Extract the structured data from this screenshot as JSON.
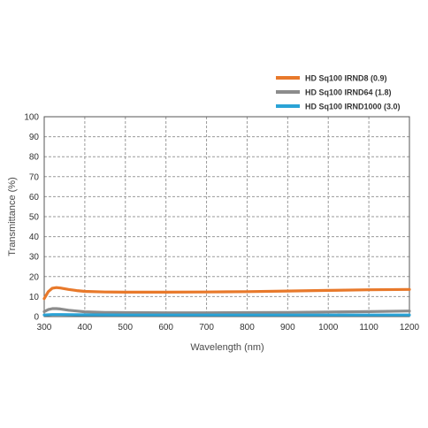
{
  "chart_data": {
    "type": "line",
    "xlabel": "Wavelength (nm)",
    "ylabel": "Transmittance (%)",
    "xlim": [
      300,
      1200
    ],
    "ylim": [
      0,
      100
    ],
    "x_ticks": [
      "300",
      "400",
      "500",
      "600",
      "700",
      "800",
      "900",
      "1000",
      "1100",
      "1200"
    ],
    "y_ticks": [
      "0",
      "10",
      "20",
      "30",
      "40",
      "50",
      "60",
      "70",
      "80",
      "90",
      "100"
    ],
    "grid": "dashed",
    "legend_position": "top-right",
    "series": [
      {
        "name": "HD Sq100 IRND8 (0.9)",
        "color": "#e8792b",
        "x": [
          300,
          310,
          320,
          330,
          340,
          360,
          380,
          400,
          450,
          500,
          600,
          700,
          800,
          900,
          1000,
          1100,
          1200
        ],
        "y": [
          9,
          12.5,
          14.2,
          14.5,
          14.3,
          13.6,
          13,
          12.6,
          12.3,
          12.2,
          12.2,
          12.3,
          12.5,
          12.8,
          13.1,
          13.4,
          13.6
        ]
      },
      {
        "name": "HD Sq100 IRND64 (1.8)",
        "color": "#8c8c8c",
        "x": [
          300,
          310,
          320,
          330,
          340,
          360,
          380,
          400,
          450,
          500,
          600,
          700,
          800,
          900,
          1000,
          1100,
          1200
        ],
        "y": [
          2.5,
          3.5,
          4.0,
          4.0,
          3.8,
          3.2,
          2.8,
          2.4,
          2.1,
          2.0,
          1.9,
          1.9,
          2.0,
          2.1,
          2.3,
          2.5,
          2.8
        ]
      },
      {
        "name": "HD Sq100 IRND1000 (3.0)",
        "color": "#2aa3d6",
        "x": [
          300,
          320,
          340,
          400,
          500,
          600,
          700,
          800,
          900,
          1000,
          1100,
          1200
        ],
        "y": [
          0.8,
          1.0,
          1.0,
          0.9,
          0.8,
          0.8,
          0.8,
          0.8,
          0.8,
          0.8,
          0.8,
          0.8
        ]
      }
    ]
  }
}
